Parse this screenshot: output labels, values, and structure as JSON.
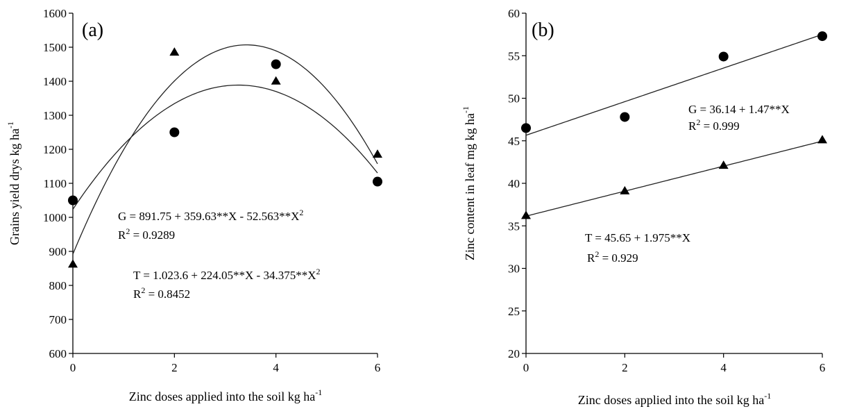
{
  "chart_data": [
    {
      "type": "scatter",
      "panel_label": "(a)",
      "xlabel": "Zinc doses applied into the soil kg ha",
      "xlabel_sup": "-1",
      "ylabel": "Grains yield drys kg ha",
      "ylabel_sup": "-1",
      "xlim": [
        0,
        6
      ],
      "ylim": [
        600,
        1600
      ],
      "xticks": [
        0,
        2,
        4,
        6
      ],
      "yticks": [
        600,
        700,
        800,
        900,
        1000,
        1100,
        1200,
        1300,
        1400,
        1500,
        1600
      ],
      "grid": false,
      "series": [
        {
          "marker": "circle",
          "x": [
            0,
            2,
            4,
            6
          ],
          "y": [
            1050,
            1250,
            1450,
            1105
          ],
          "fit": {
            "kind": "quadratic",
            "coef": [
              1023.6,
              224.05,
              -34.375
            ]
          }
        },
        {
          "marker": "triangle",
          "x": [
            0,
            2,
            4,
            6
          ],
          "y": [
            862,
            1485,
            1400,
            1185
          ],
          "fit": {
            "kind": "quadratic",
            "coef": [
              891.75,
              359.63,
              -52.563
            ]
          }
        }
      ],
      "annotations": [
        {
          "parts": [
            "G = 891.75 + 359.63**X - 52.563**X",
            "2"
          ],
          "r2": [
            "R",
            "2",
            " = 0.9289"
          ]
        },
        {
          "parts": [
            "T = 1.023.6 + 224.05**X - 34.375**X",
            "2"
          ],
          "r2": [
            "R",
            "2",
            " = 0.8452"
          ]
        }
      ]
    },
    {
      "type": "scatter",
      "panel_label": "(b)",
      "xlabel": "Zinc doses applied into the soil kg ha",
      "xlabel_sup": "-1",
      "ylabel": "Zinc content in leaf mg kg ha",
      "ylabel_sup": "-1",
      "xlim": [
        0,
        6
      ],
      "ylim": [
        20,
        60
      ],
      "xticks": [
        0,
        2,
        4,
        6
      ],
      "yticks": [
        20,
        25,
        30,
        35,
        40,
        45,
        50,
        55,
        60
      ],
      "grid": false,
      "series": [
        {
          "marker": "circle",
          "x": [
            0,
            2,
            4,
            6
          ],
          "y": [
            46.5,
            47.8,
            54.9,
            57.3
          ],
          "fit": {
            "kind": "linear",
            "coef": [
              45.65,
              1.975
            ]
          }
        },
        {
          "marker": "triangle",
          "x": [
            0,
            2,
            4,
            6
          ],
          "y": [
            36.2,
            39.1,
            42.1,
            45.1
          ],
          "fit": {
            "kind": "linear",
            "coef": [
              36.14,
              1.47
            ]
          }
        }
      ],
      "annotations": [
        {
          "parts": [
            "G = 36.14 + 1.47**X"
          ],
          "r2": [
            "R",
            "2",
            " = 0.999"
          ]
        },
        {
          "parts": [
            "T =  45.65 + 1.975**X"
          ],
          "r2": [
            "R",
            "2",
            " = 0.929"
          ]
        }
      ]
    }
  ]
}
